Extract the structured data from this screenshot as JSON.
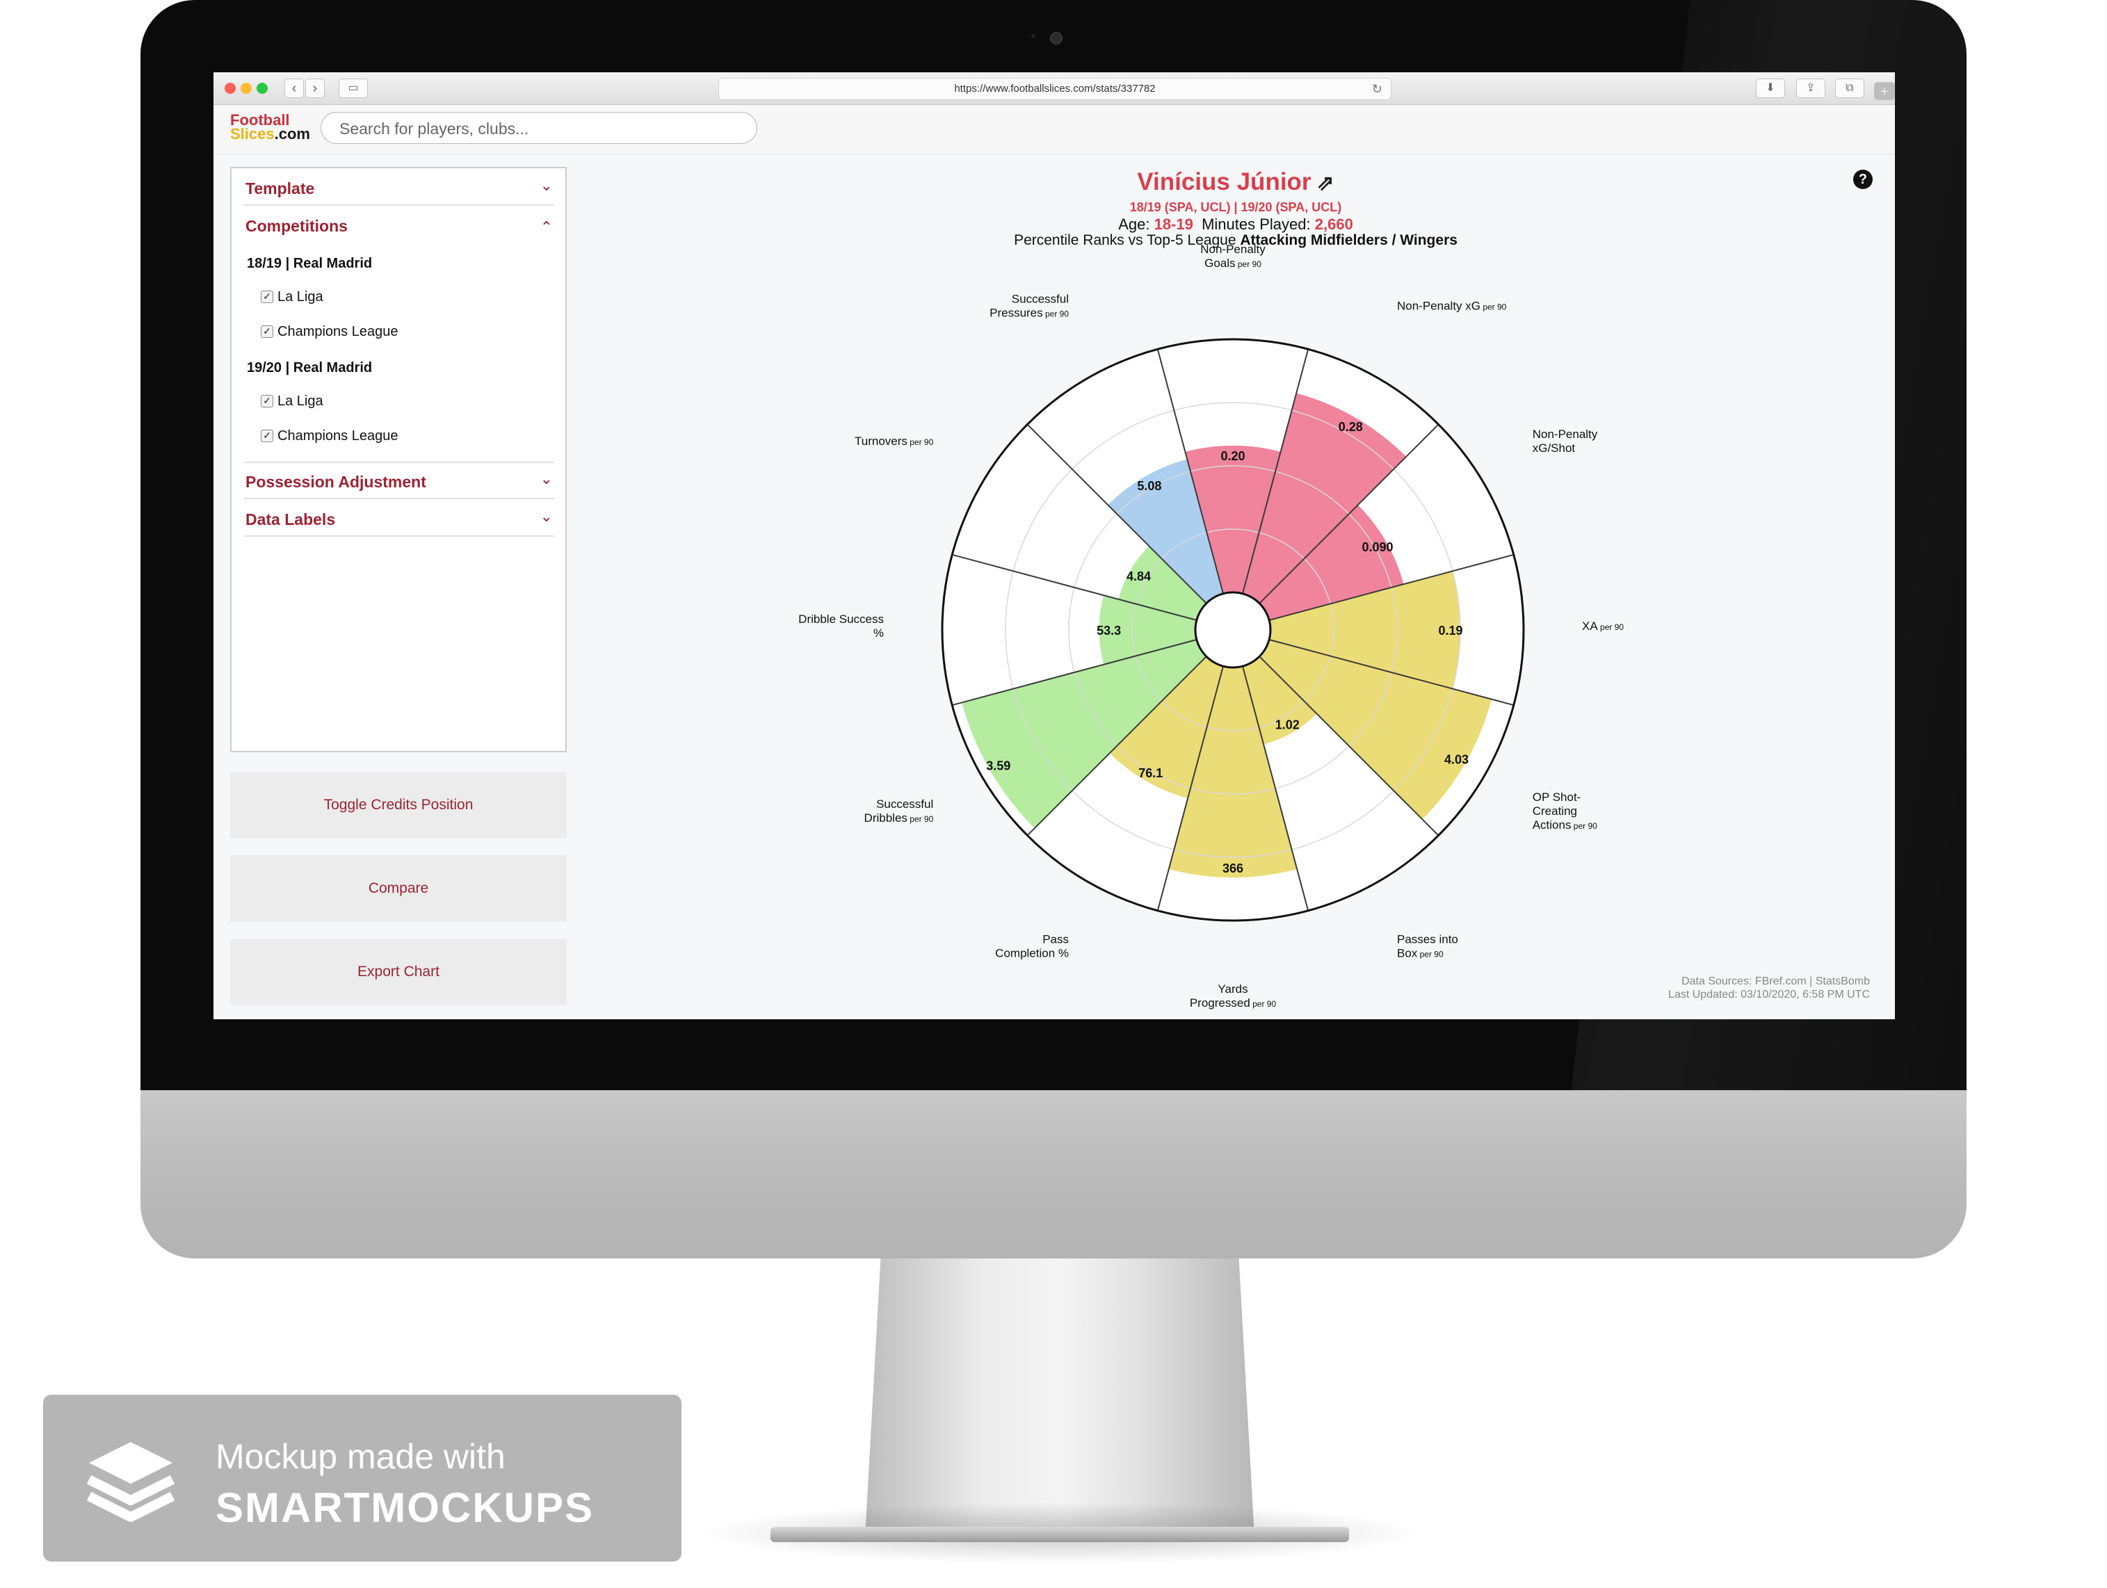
{
  "browser": {
    "url": "https://www.footballslices.com/stats/337782"
  },
  "site": {
    "logo_line1": "Football",
    "logo_line2a": "Slices",
    "logo_line2b": ".com",
    "search_placeholder": "Search for players, clubs..."
  },
  "sidebar": {
    "template_label": "Template",
    "competitions_label": "Competitions",
    "seasons": [
      {
        "title": "18/19 | Real Madrid",
        "competitions": [
          "La Liga",
          "Champions League"
        ]
      },
      {
        "title": "19/20 | Real Madrid",
        "competitions": [
          "La Liga",
          "Champions League"
        ]
      }
    ],
    "possession_label": "Possession Adjustment",
    "data_labels_label": "Data Labels",
    "toggle_credits_label": "Toggle Credits Position",
    "compare_label": "Compare",
    "export_label": "Export Chart"
  },
  "header": {
    "player_name": "Vinícius Júnior",
    "seasons_line": "18/19 (SPA, UCL)  | 19/20 (SPA, UCL)",
    "age_label": "Age:",
    "age_value": "18-19",
    "minutes_label": "Minutes Played:",
    "minutes_value": "2,660",
    "subtitle_prefix": "Percentile Ranks vs Top-5 League",
    "subtitle_bold": "Attacking Midfielders / Wingers"
  },
  "credits": {
    "line1": "Data Sources: FBref.com | StatsBomb",
    "line2": "Last Updated: 03/10/2020, 6:58 PM UTC"
  },
  "watermark": {
    "line1": "Mockup made with",
    "line2": "SMARTMOCKUPS"
  },
  "colors": {
    "accent_red": "#9c2332",
    "name_red": "#d93f4c",
    "attacking": "#ec6f8b",
    "possession": "#e6d65e",
    "dribbling": "#a8e98f",
    "defending": "#9ec6ec"
  },
  "chart_data": {
    "type": "radial-bar",
    "series": [
      {
        "label": "Non-Penalty",
        "label2": "Goals",
        "unit": "per 90",
        "value": "0.20",
        "percentile": 58,
        "group": "attacking"
      },
      {
        "label": "Non-Penalty xG",
        "label2": "",
        "unit": "per 90",
        "value": "0.28",
        "percentile": 82,
        "group": "attacking"
      },
      {
        "label": "Non-Penalty",
        "label2": "xG/Shot",
        "unit": "",
        "value": "0.090",
        "percentile": 55,
        "group": "attacking"
      },
      {
        "label": "XA",
        "label2": "",
        "unit": "per 90",
        "value": "0.19",
        "percentile": 75,
        "group": "possession"
      },
      {
        "label": "OP Shot-",
        "label2": "Creating",
        "label3": "Actions",
        "unit": "per 90",
        "value": "4.03",
        "percentile": 91,
        "group": "possession"
      },
      {
        "label": "Passes into",
        "label2": "Box",
        "unit": "per 90",
        "value": "1.02",
        "percentile": 32,
        "group": "possession"
      },
      {
        "label": "Yards",
        "label2": "Progressed",
        "unit": "per 90",
        "value": "366",
        "percentile": 83,
        "group": "possession"
      },
      {
        "label": "Pass",
        "label2": "Completion %",
        "unit": "",
        "value": "76.1",
        "percentile": 54,
        "group": "possession"
      },
      {
        "label": "Successful",
        "label2": "Dribbles",
        "unit": "per 90",
        "value": "3.59",
        "percentile": 96,
        "group": "dribbling"
      },
      {
        "label": "Dribble Success",
        "label2": "%",
        "unit": "",
        "value": "53.3",
        "percentile": 38,
        "group": "dribbling"
      },
      {
        "label": "Turnovers",
        "label2": "",
        "unit": "per 90",
        "value": "4.84",
        "percentile": 32,
        "group": "dribbling"
      },
      {
        "label": "Successful",
        "label2": "Pressures",
        "unit": "per 90",
        "value": "5.08",
        "percentile": 55,
        "group": "defending"
      }
    ]
  }
}
